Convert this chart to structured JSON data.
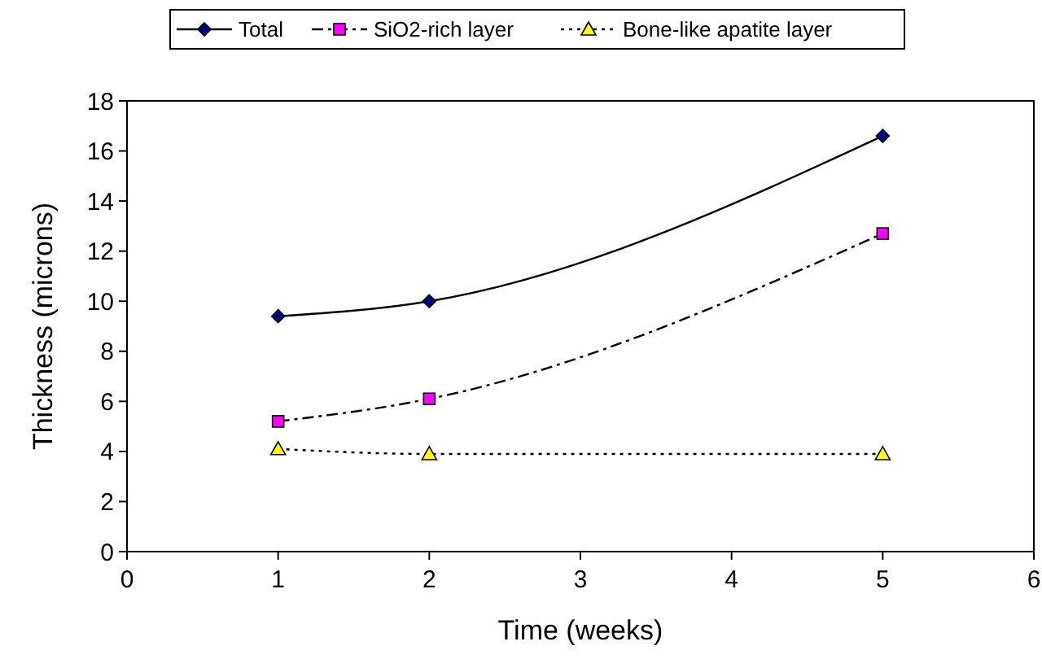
{
  "chart_data": {
    "type": "line",
    "xlabel": "Time (weeks)",
    "ylabel": "Thickness (microns)",
    "x": [
      1,
      2,
      5
    ],
    "xlim": [
      0,
      6
    ],
    "xticks": [
      0,
      1,
      2,
      3,
      4,
      5,
      6
    ],
    "ylim": [
      0,
      18
    ],
    "yticks": [
      0,
      2,
      4,
      6,
      8,
      10,
      12,
      14,
      16,
      18
    ],
    "grid": false,
    "legend": "top",
    "series": [
      {
        "name": "Total",
        "color": "#000080",
        "values": [
          9.4,
          10.0,
          16.6
        ],
        "marker": "diamond",
        "line_style": "solid"
      },
      {
        "name": "SiO2-rich layer",
        "color": "#ff00ff",
        "values": [
          5.2,
          6.1,
          12.7
        ],
        "marker": "square",
        "line_style": "dashed"
      },
      {
        "name": "Bone-like apatite layer",
        "color": "#ffff00",
        "values": [
          4.1,
          3.9,
          3.9
        ],
        "marker": "triangle",
        "line_style": "dotted"
      }
    ]
  }
}
